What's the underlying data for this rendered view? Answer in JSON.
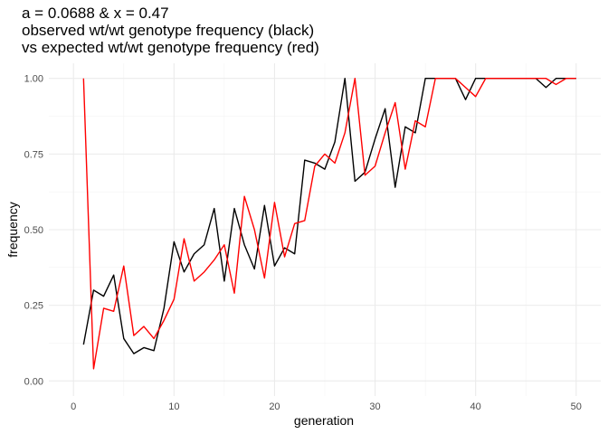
{
  "chart_data": {
    "type": "line",
    "title_lines": [
      "a = 0.0688 & x = 0.47",
      "observed wt/wt genotype frequency (black)",
      "vs expected wt/wt genotype frequency (red)"
    ],
    "xlabel": "generation",
    "ylabel": "frequency",
    "xlim": [
      -2.45,
      52.45
    ],
    "ylim": [
      -0.05,
      1.05
    ],
    "x_ticks": [
      0,
      10,
      20,
      30,
      40,
      50
    ],
    "y_ticks": [
      0.0,
      0.25,
      0.5,
      0.75,
      1.0
    ],
    "x_tick_labels": [
      "0",
      "10",
      "20",
      "30",
      "40",
      "50"
    ],
    "y_tick_labels": [
      "0.00",
      "0.25",
      "0.50",
      "0.75",
      "1.00"
    ],
    "grid": true,
    "x": [
      1,
      2,
      3,
      4,
      5,
      6,
      7,
      8,
      9,
      10,
      11,
      12,
      13,
      14,
      15,
      16,
      17,
      18,
      19,
      20,
      21,
      22,
      23,
      24,
      25,
      26,
      27,
      28,
      29,
      30,
      31,
      32,
      33,
      34,
      35,
      36,
      37,
      38,
      39,
      40,
      41,
      42,
      43,
      44,
      45,
      46,
      47,
      48,
      49,
      50
    ],
    "series": [
      {
        "color": "#000000",
        "values": [
          0.12,
          0.3,
          0.28,
          0.35,
          0.14,
          0.09,
          0.11,
          0.1,
          0.24,
          0.46,
          0.36,
          0.42,
          0.45,
          0.57,
          0.33,
          0.57,
          0.45,
          0.37,
          0.58,
          0.38,
          0.44,
          0.42,
          0.73,
          0.72,
          0.7,
          0.79,
          1.0,
          0.66,
          0.69,
          0.8,
          0.9,
          0.64,
          0.84,
          0.82,
          1.0,
          1.0,
          1.0,
          1.0,
          0.93,
          1.0,
          1.0,
          1.0,
          1.0,
          1.0,
          1.0,
          1.0,
          0.97,
          1.0,
          1.0,
          1.0
        ]
      },
      {
        "color": "#ff0000",
        "values": [
          1.0,
          0.04,
          0.24,
          0.23,
          0.38,
          0.15,
          0.18,
          0.14,
          0.2,
          0.27,
          0.47,
          0.33,
          0.36,
          0.4,
          0.45,
          0.29,
          0.61,
          0.5,
          0.34,
          0.59,
          0.41,
          0.52,
          0.53,
          0.71,
          0.75,
          0.72,
          0.82,
          1.0,
          0.68,
          0.71,
          0.82,
          0.92,
          0.7,
          0.86,
          0.84,
          1.0,
          1.0,
          1.0,
          0.97,
          0.94,
          1.0,
          1.0,
          1.0,
          1.0,
          1.0,
          1.0,
          1.0,
          0.98,
          1.0,
          1.0
        ]
      }
    ]
  },
  "colors": {
    "background": "#ffffff",
    "grid_major": "#ebebeb",
    "grid_minor": "#f3f3f3",
    "tick_text": "#4d4d4d",
    "axis_title": "#000000"
  }
}
